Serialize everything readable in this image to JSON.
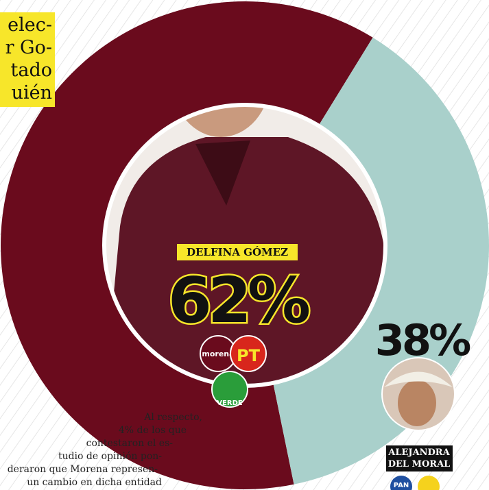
{
  "chart_data": {
    "type": "donut",
    "categories": [
      "DELFINA GÓMEZ",
      "ALEJANDRA DEL MORAL"
    ],
    "values": [
      62,
      38
    ],
    "value_labels": [
      "62%",
      "38%"
    ],
    "colors": [
      "#6a0b1d",
      "#a9d0cb"
    ]
  },
  "side_text": [
    "elec-",
    "r Go-",
    "tado",
    "uién"
  ],
  "body_text": [
    "Al respecto,",
    "4% de los que",
    "contestaron el es-",
    "tudio de opinión pon-",
    "deraron que Morena represen-",
    "un cambio en dicha entidad"
  ],
  "logos": [
    "morena",
    "PT",
    "VERDE",
    "PAN"
  ]
}
